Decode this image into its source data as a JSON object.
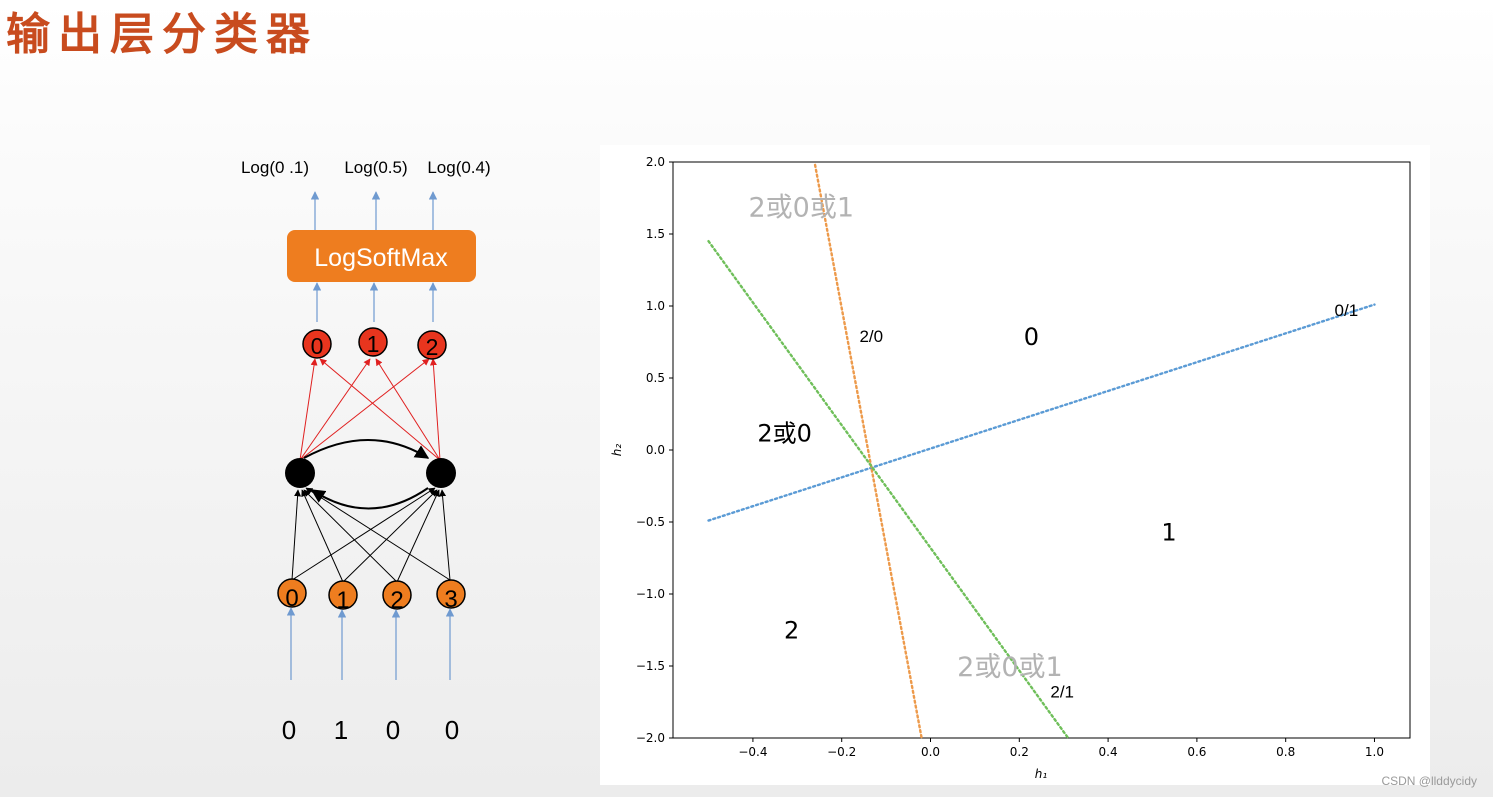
{
  "slide": {
    "title": "输出层分类器",
    "credit": "CSDN @llddycidy"
  },
  "network": {
    "output_logs": [
      "Log(0 .1)",
      "Log(0.5)",
      "Log(0.4)"
    ],
    "softmax_label": "LogSoftMax",
    "output_nodes": [
      "0",
      "1",
      "2"
    ],
    "input_nodes": [
      "0",
      "1",
      "2",
      "3"
    ],
    "input_values": [
      "0",
      "1",
      "0",
      "0"
    ],
    "colors": {
      "output_node": "#e8351e",
      "input_node": "#ee7d1f",
      "hidden_node": "#000000",
      "softmax_box": "#ee7d1f",
      "input_arrow": "#6f9ad0",
      "red_edge": "#e02020"
    }
  },
  "plot": {
    "xlabel": "h₁",
    "ylabel": "h₂",
    "xlim": [
      -0.58,
      1.08
    ],
    "ylim": [
      -2.0,
      2.0
    ],
    "xticks": [
      -0.4,
      -0.2,
      0.0,
      0.2,
      0.4,
      0.6,
      0.8,
      1.0
    ],
    "xtick_labels": [
      "−0.4",
      "−0.2",
      "0.0",
      "0.2",
      "0.4",
      "0.6",
      "0.8",
      "1.0"
    ],
    "yticks": [
      2.0,
      1.5,
      1.0,
      0.5,
      0.0,
      -0.5,
      -1.0,
      -1.5,
      -2.0
    ],
    "ytick_labels": [
      "2.0",
      "1.5",
      "1.0",
      "0.5",
      "0.0",
      "−0.5",
      "−1.0",
      "−1.5",
      "−2.0"
    ],
    "grid": false
  },
  "chart_data": {
    "type": "line",
    "title": "",
    "xlabel": "h₁",
    "ylabel": "h₂",
    "xlim": [
      -0.58,
      1.08
    ],
    "ylim": [
      -2.0,
      2.0
    ],
    "series": [
      {
        "color": "#5b9bd5",
        "style": "dotted",
        "x": [
          -0.5,
          1.0
        ],
        "y": [
          -0.49,
          1.01
        ]
      },
      {
        "color": "#ed9a4b",
        "style": "dotted",
        "x": [
          -0.26,
          -0.02
        ],
        "y": [
          1.98,
          -2.0
        ]
      },
      {
        "color": "#6fbf5a",
        "style": "dotted",
        "x": [
          -0.5,
          0.31
        ],
        "y": [
          1.45,
          -2.0
        ]
      }
    ],
    "region_labels": [
      {
        "text": "0",
        "x": 0.21,
        "y": 0.73,
        "size": 24,
        "color": "#000000"
      },
      {
        "text": "1",
        "x": 0.52,
        "y": -0.63,
        "size": 24,
        "color": "#000000"
      },
      {
        "text": "2",
        "x": -0.33,
        "y": -1.31,
        "size": 24,
        "color": "#000000"
      },
      {
        "text": "2或0",
        "x": -0.39,
        "y": 0.06,
        "size": 24,
        "color": "#000000"
      },
      {
        "text": "2或0或1",
        "x": -0.41,
        "y": 1.62,
        "size": 27,
        "color": "#b3b3b3"
      },
      {
        "text": "2或0或1",
        "x": 0.06,
        "y": -1.57,
        "size": 27,
        "color": "#b3b3b3"
      }
    ],
    "line_labels": [
      {
        "text": "0/1",
        "x": 0.91,
        "y": 0.93
      },
      {
        "text": "2/0",
        "x": -0.16,
        "y": 0.75
      },
      {
        "text": "2/1",
        "x": 0.27,
        "y": -1.72
      }
    ]
  }
}
